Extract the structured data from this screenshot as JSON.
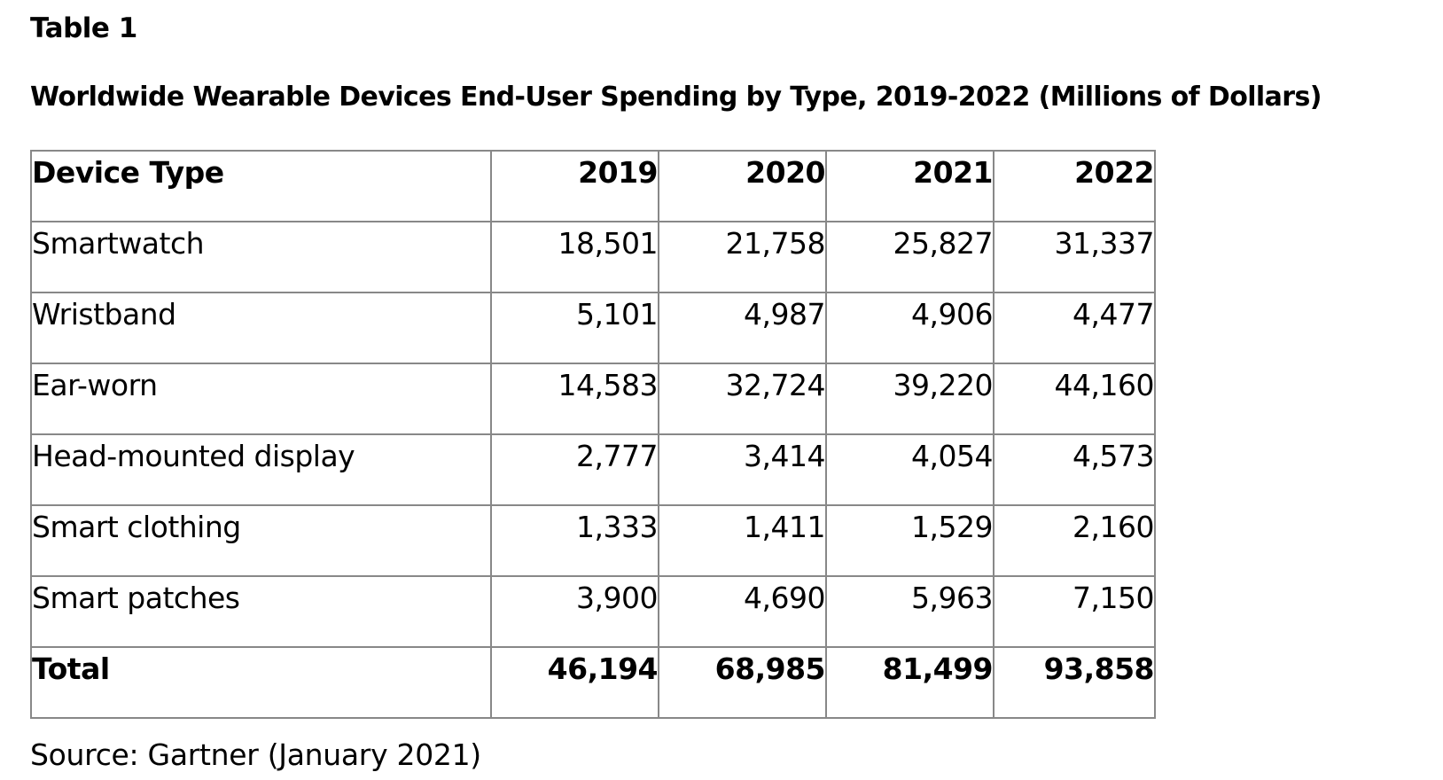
{
  "header": {
    "label": "Table 1",
    "title": "Worldwide Wearable Devices End-User Spending by Type, 2019-2022 (Millions of Dollars)"
  },
  "table": {
    "columns": [
      "Device Type",
      "2019",
      "2020",
      "2021",
      "2022"
    ],
    "rows": [
      [
        "Smartwatch",
        "18,501",
        "21,758",
        "25,827",
        "31,337"
      ],
      [
        "Wristband",
        "5,101",
        "4,987",
        "4,906",
        "4,477"
      ],
      [
        "Ear-worn",
        "14,583",
        "32,724",
        "39,220",
        "44,160"
      ],
      [
        "Head-mounted display",
        "2,777",
        "3,414",
        "4,054",
        "4,573"
      ],
      [
        "Smart clothing",
        "1,333",
        "1,411",
        "1,529",
        "2,160"
      ],
      [
        "Smart patches",
        "3,900",
        "4,690",
        "5,963",
        "7,150"
      ],
      [
        "Total",
        "46,194",
        "68,985",
        "81,499",
        "93,858"
      ]
    ]
  },
  "source": "Source: Gartner (January 2021)"
}
